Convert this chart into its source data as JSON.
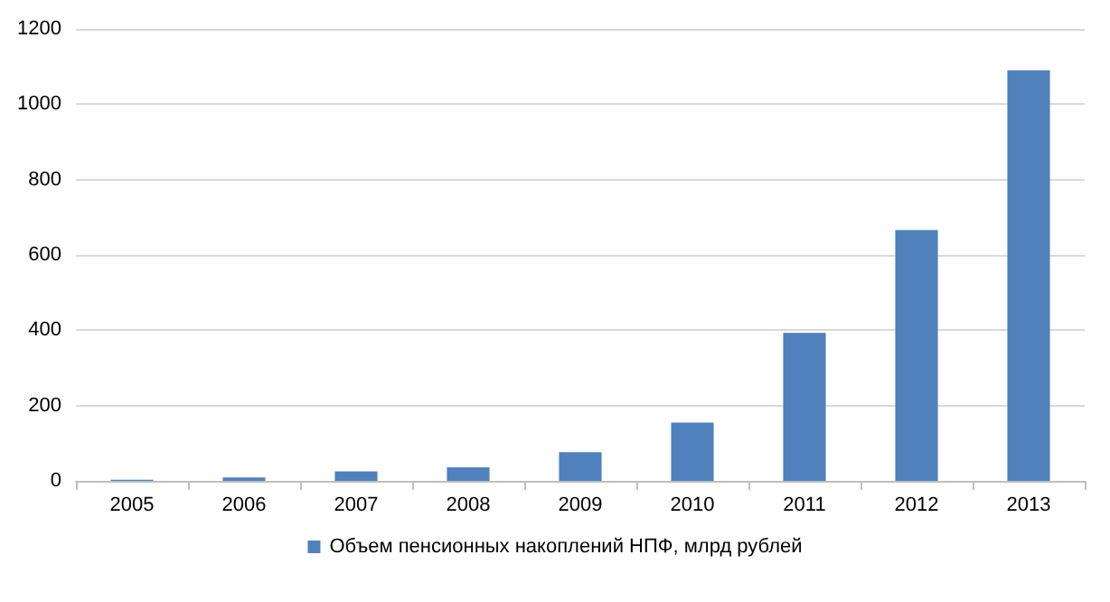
{
  "chart_data": {
    "type": "bar",
    "categories": [
      "2005",
      "2006",
      "2007",
      "2008",
      "2009",
      "2010",
      "2011",
      "2012",
      "2013"
    ],
    "series": [
      {
        "name": "Объем пенсионных накоплений НПФ, млрд рублей",
        "color": "#4f81bd",
        "values": [
          3,
          9,
          25,
          36,
          76,
          155,
          393,
          666,
          1090
        ]
      }
    ],
    "ylim": [
      0,
      1200
    ],
    "yticks": [
      0,
      200,
      400,
      600,
      800,
      1000,
      1200
    ],
    "grid": "y",
    "legend": "bottom"
  }
}
